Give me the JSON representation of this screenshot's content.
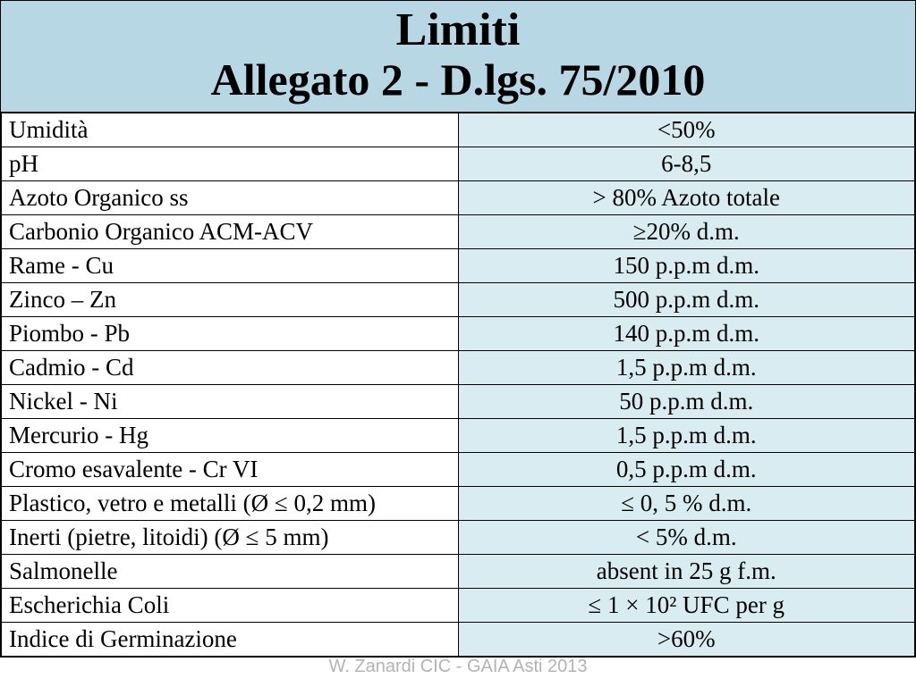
{
  "title": {
    "line1": "Limiti",
    "line2": "Allegato 2 - D.lgs. 75/2010"
  },
  "colors": {
    "header_bg": "#b6d7e3",
    "value_bg": "#d9ecf2",
    "param_bg": "#ffffff",
    "border": "#000000",
    "footer_text": "#b3b3b3"
  },
  "typography": {
    "title_fontsize": 52,
    "subtitle_fontsize": 50,
    "cell_fontsize": 27,
    "footer_fontsize": 20
  },
  "rows": [
    {
      "param": "Umidità",
      "value": "<50%"
    },
    {
      "param": "pH",
      "value": "6-8,5"
    },
    {
      "param": "Azoto Organico ss",
      "value": "> 80% Azoto totale"
    },
    {
      "param": "Carbonio Organico ACM-ACV",
      "value": "≥20% d.m."
    },
    {
      "param": "Rame - Cu",
      "value": "150 p.p.m d.m."
    },
    {
      "param": "Zinco – Zn",
      "value": "500 p.p.m d.m."
    },
    {
      "param": "Piombo - Pb",
      "value": "140 p.p.m d.m."
    },
    {
      "param": "Cadmio - Cd",
      "value": "1,5 p.p.m d.m."
    },
    {
      "param": "Nickel - Ni",
      "value": "50 p.p.m d.m."
    },
    {
      "param": "Mercurio - Hg",
      "value": "1,5 p.p.m d.m."
    },
    {
      "param": "Cromo esavalente - Cr VI",
      "value": "0,5 p.p.m d.m."
    },
    {
      "param": "Plastico, vetro e metalli (Ø ≤ 0,2 mm)",
      "value": "≤ 0, 5 % d.m."
    },
    {
      "param": "Inerti (pietre, litoidi) (Ø ≤ 5 mm)",
      "value": "< 5% d.m."
    },
    {
      "param": "Salmonelle",
      "value": "absent in 25 g f.m."
    },
    {
      "param": "Escherichia Coli",
      "value": "≤ 1 × 10² UFC per g"
    },
    {
      "param": "Indice di Germinazione",
      "value": ">60%"
    }
  ],
  "footer": "W. Zanardi CIC - GAIA Asti 2013"
}
